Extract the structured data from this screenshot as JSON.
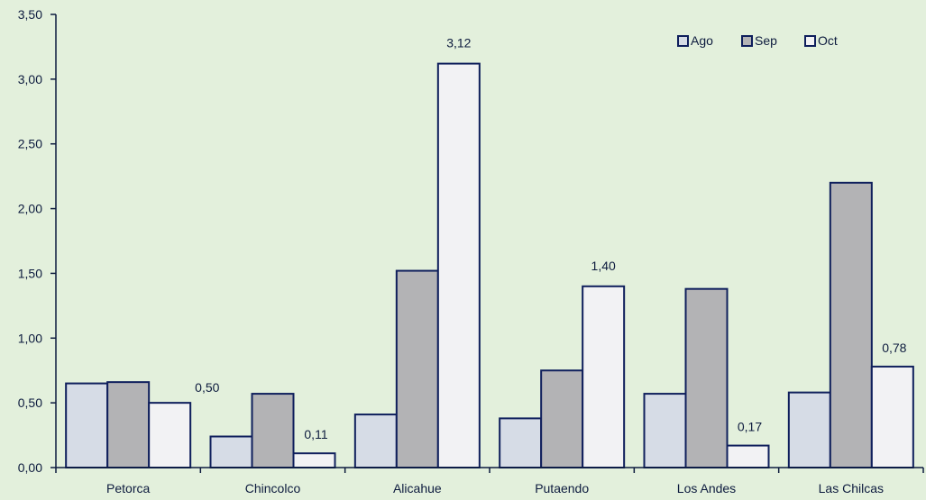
{
  "chart_data": {
    "type": "bar",
    "categories": [
      "Petorca",
      "Chincolco",
      "Alicahue",
      "Putaendo",
      "Los Andes",
      "Las Chilcas"
    ],
    "series": [
      {
        "name": "Ago",
        "values": [
          0.65,
          0.24,
          0.41,
          0.38,
          0.57,
          0.58
        ],
        "color": "#d6dce6"
      },
      {
        "name": "Sep",
        "values": [
          0.66,
          0.57,
          1.52,
          0.75,
          1.38,
          2.2
        ],
        "color": "#b3b3b5"
      },
      {
        "name": "Oct",
        "values": [
          0.5,
          0.11,
          3.12,
          1.4,
          0.17,
          0.78
        ],
        "color": "#f2f2f4",
        "data_labels": [
          "0,50",
          "0,11",
          "3,12",
          "1,40",
          "0,17",
          "0,78"
        ]
      }
    ],
    "y_ticks": [
      "0,00",
      "0,50",
      "1,00",
      "1,50",
      "2,00",
      "2,50",
      "3,00",
      "3,50"
    ],
    "ylim": [
      0,
      3.5
    ],
    "title": "",
    "xlabel": "",
    "ylabel": "",
    "grid": false,
    "legend_position": "top-right",
    "colors": {
      "background": "#e3f0dc",
      "axis": "#0d1b3e",
      "bar_border": "#0f1f5c"
    }
  }
}
